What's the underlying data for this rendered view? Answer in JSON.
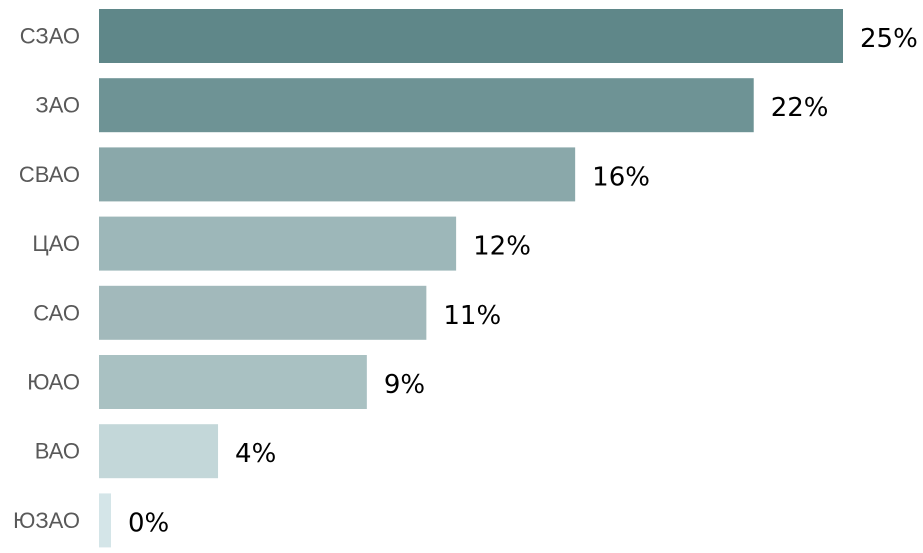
{
  "chart_data": {
    "type": "bar",
    "orientation": "horizontal",
    "categories": [
      "СЗАО",
      "ЗАО",
      "СВАО",
      "ЦАО",
      "САО",
      "ЮАО",
      "ВАО",
      "ЮЗАО"
    ],
    "values": [
      25,
      22,
      16,
      12,
      11,
      9,
      4,
      0
    ],
    "value_labels": [
      "25%",
      "22%",
      "16%",
      "12%",
      "11%",
      "9%",
      "4%",
      "0%"
    ],
    "unit": "%",
    "xlim": [
      0,
      25
    ],
    "grid": false,
    "legend": "none",
    "colors": [
      "#5f8789",
      "#6e9395",
      "#8aa8aa",
      "#9db7b9",
      "#a2b9bb",
      "#a9c1c2",
      "#c3d7d9",
      "#d4e5e8"
    ]
  }
}
